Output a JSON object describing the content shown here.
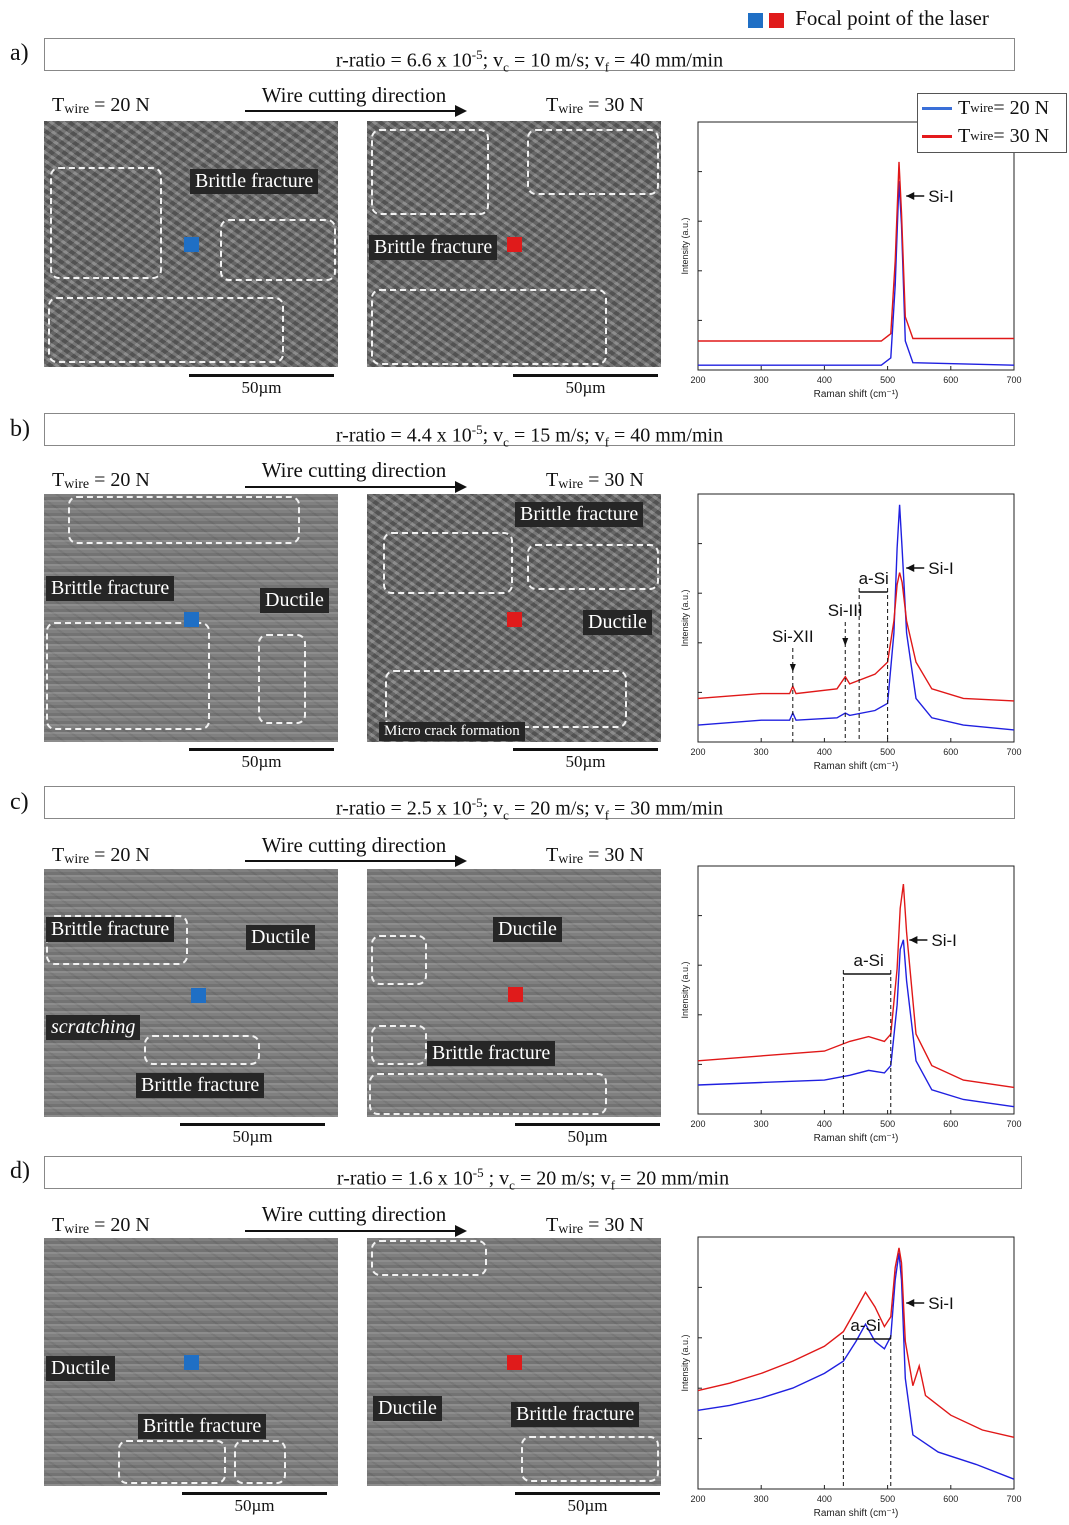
{
  "legend": {
    "label": "Focal point of the laser",
    "colors": {
      "blue": "#1f6fc5",
      "red": "#e01b1b"
    }
  },
  "common": {
    "twire_prefix": "T",
    "twire_sub": "wire",
    "twire_20": " = 20 N",
    "twire_30": " = 30 N",
    "direction": "Wire cutting direction",
    "scale": "50µm"
  },
  "panels": [
    {
      "label": "a)",
      "cond": {
        "r_pre": "r-ratio = 6.6 x 10",
        "r_exp": "-5",
        "vc_pre": "; v",
        "vc_sub": "c",
        "vc_val": " = 10 m/s; v",
        "vf_sub": "f",
        "vf_val": " = 40 mm/min"
      },
      "left_tags": [
        "Brittle fracture"
      ],
      "right_tags": [
        "Brittle fracture"
      ]
    },
    {
      "label": "b)",
      "cond": {
        "r_pre": "r-ratio = 4.4 x 10",
        "r_exp": "-5",
        "vc_pre": "; v",
        "vc_sub": "c",
        "vc_val": " = 15 m/s; v",
        "vf_sub": "f",
        "vf_val": " = 40 mm/min"
      },
      "left_tags": [
        "Brittle fracture",
        "Ductile"
      ],
      "right_tags": [
        "Brittle fracture",
        "Ductile",
        "Micro crack formation"
      ]
    },
    {
      "label": "c)",
      "cond": {
        "r_pre": "r-ratio = 2.5 x 10",
        "r_exp": "-5",
        "vc_pre": "; v",
        "vc_sub": "c",
        "vc_val": " = 20 m/s; v",
        "vf_sub": "f",
        "vf_val": " = 30 mm/min"
      },
      "left_tags": [
        "Brittle fracture",
        "Ductile",
        "scratching",
        "Brittle fracture"
      ],
      "right_tags": [
        "Ductile",
        "Brittle fracture"
      ]
    },
    {
      "label": "d)",
      "cond": {
        "r_pre": "r-ratio = 1.6 x 10",
        "r_exp": "-5",
        "vc_pre": " ; v",
        "vc_sub": "c",
        "vc_val": " = 20 m/s; v",
        "vf_sub": "f",
        "vf_val": " = 20 mm/min"
      },
      "left_tags": [
        "Ductile",
        "Brittle fracture"
      ],
      "right_tags": [
        "Ductile",
        "Brittle fracture"
      ]
    }
  ],
  "chart_data": [
    {
      "type": "line",
      "xlabel": "Raman shift (cm⁻¹)",
      "ylabel": "Intensity (a.u.)",
      "xlim": [
        200,
        700
      ],
      "xticks": [
        200,
        300,
        400,
        500,
        600,
        700
      ],
      "legend_entries": [
        {
          "prefix": "T",
          "sub": "wire",
          "text": " = 20 N",
          "color": "#3a6fd8"
        },
        {
          "prefix": "T",
          "sub": "wire",
          "text": " = 30 N",
          "color": "#e41a1c"
        }
      ],
      "annotations": [
        {
          "text": "Si-I",
          "x": 520
        }
      ],
      "series": [
        {
          "color": "#2020e0",
          "points": [
            [
              200,
              0.02
            ],
            [
              490,
              0.02
            ],
            [
              505,
              0.05
            ],
            [
              512,
              0.35
            ],
            [
              518,
              0.78
            ],
            [
              522,
              0.6
            ],
            [
              528,
              0.12
            ],
            [
              540,
              0.03
            ],
            [
              700,
              0.02
            ]
          ]
        },
        {
          "color": "#e01818",
          "points": [
            [
              200,
              0.12
            ],
            [
              490,
              0.12
            ],
            [
              505,
              0.15
            ],
            [
              512,
              0.45
            ],
            [
              518,
              0.86
            ],
            [
              522,
              0.65
            ],
            [
              528,
              0.22
            ],
            [
              540,
              0.13
            ],
            [
              700,
              0.13
            ]
          ]
        }
      ],
      "ylim": [
        0,
        1
      ]
    },
    {
      "type": "line",
      "xlabel": "Raman shift (cm⁻¹)",
      "ylabel": "Intensity (a.u.)",
      "xlim": [
        200,
        700
      ],
      "xticks": [
        200,
        300,
        400,
        500,
        600,
        700
      ],
      "annotations": [
        {
          "text": "Si-XII",
          "x": 350
        },
        {
          "text": "Si-III",
          "x": 433
        },
        {
          "text": "a-Si",
          "x": 478
        },
        {
          "text": "Si-I",
          "x": 520
        }
      ],
      "series": [
        {
          "color": "#2020e0",
          "points": [
            [
              200,
              0.07
            ],
            [
              300,
              0.09
            ],
            [
              345,
              0.09
            ],
            [
              350,
              0.12
            ],
            [
              355,
              0.09
            ],
            [
              420,
              0.1
            ],
            [
              433,
              0.12
            ],
            [
              440,
              0.11
            ],
            [
              480,
              0.13
            ],
            [
              500,
              0.16
            ],
            [
              510,
              0.45
            ],
            [
              515,
              0.8
            ],
            [
              519,
              0.98
            ],
            [
              523,
              0.8
            ],
            [
              530,
              0.45
            ],
            [
              545,
              0.18
            ],
            [
              570,
              0.1
            ],
            [
              620,
              0.07
            ],
            [
              700,
              0.05
            ]
          ]
        },
        {
          "color": "#e01818",
          "points": [
            [
              200,
              0.18
            ],
            [
              300,
              0.2
            ],
            [
              345,
              0.2
            ],
            [
              350,
              0.23
            ],
            [
              355,
              0.2
            ],
            [
              420,
              0.22
            ],
            [
              433,
              0.27
            ],
            [
              440,
              0.24
            ],
            [
              480,
              0.28
            ],
            [
              500,
              0.33
            ],
            [
              510,
              0.5
            ],
            [
              515,
              0.65
            ],
            [
              519,
              0.7
            ],
            [
              523,
              0.66
            ],
            [
              530,
              0.5
            ],
            [
              545,
              0.33
            ],
            [
              570,
              0.22
            ],
            [
              620,
              0.18
            ],
            [
              700,
              0.17
            ]
          ]
        }
      ],
      "ylim": [
        0,
        1
      ]
    },
    {
      "type": "line",
      "xlabel": "Raman shift (cm⁻¹)",
      "ylabel": "Intensity (a.u.)",
      "xlim": [
        200,
        700
      ],
      "xticks": [
        200,
        300,
        400,
        500,
        600,
        700
      ],
      "annotations": [
        {
          "text": "a-Si",
          "x": 470
        },
        {
          "text": "Si-I",
          "x": 525
        }
      ],
      "series": [
        {
          "color": "#2020e0",
          "points": [
            [
              200,
              0.12
            ],
            [
              300,
              0.13
            ],
            [
              400,
              0.14
            ],
            [
              440,
              0.16
            ],
            [
              470,
              0.18
            ],
            [
              495,
              0.17
            ],
            [
              505,
              0.2
            ],
            [
              515,
              0.45
            ],
            [
              520,
              0.68
            ],
            [
              525,
              0.72
            ],
            [
              530,
              0.55
            ],
            [
              545,
              0.22
            ],
            [
              570,
              0.1
            ],
            [
              620,
              0.06
            ],
            [
              700,
              0.03
            ]
          ]
        },
        {
          "color": "#e01818",
          "points": [
            [
              200,
              0.22
            ],
            [
              300,
              0.24
            ],
            [
              400,
              0.26
            ],
            [
              440,
              0.3
            ],
            [
              470,
              0.32
            ],
            [
              495,
              0.3
            ],
            [
              505,
              0.33
            ],
            [
              515,
              0.6
            ],
            [
              520,
              0.85
            ],
            [
              525,
              0.95
            ],
            [
              530,
              0.75
            ],
            [
              545,
              0.33
            ],
            [
              570,
              0.2
            ],
            [
              620,
              0.14
            ],
            [
              700,
              0.11
            ]
          ]
        }
      ],
      "ylim": [
        0,
        1
      ]
    },
    {
      "type": "line",
      "xlabel": "Raman shift (cm⁻¹)",
      "ylabel": "Intensity (a.u.)",
      "xlim": [
        200,
        700
      ],
      "xticks": [
        200,
        300,
        400,
        500,
        600,
        700
      ],
      "annotations": [
        {
          "text": "a-Si",
          "x": 465
        },
        {
          "text": "Si-I",
          "x": 520
        }
      ],
      "series": [
        {
          "color": "#2020e0",
          "points": [
            [
              200,
              0.32
            ],
            [
              250,
              0.34
            ],
            [
              300,
              0.37
            ],
            [
              350,
              0.41
            ],
            [
              400,
              0.47
            ],
            [
              430,
              0.52
            ],
            [
              450,
              0.6
            ],
            [
              465,
              0.67
            ],
            [
              480,
              0.6
            ],
            [
              495,
              0.57
            ],
            [
              505,
              0.62
            ],
            [
              512,
              0.85
            ],
            [
              518,
              0.96
            ],
            [
              522,
              0.85
            ],
            [
              528,
              0.45
            ],
            [
              540,
              0.22
            ],
            [
              580,
              0.15
            ],
            [
              640,
              0.1
            ],
            [
              700,
              0.04
            ]
          ]
        },
        {
          "color": "#e01818",
          "points": [
            [
              200,
              0.4
            ],
            [
              250,
              0.43
            ],
            [
              300,
              0.47
            ],
            [
              350,
              0.52
            ],
            [
              400,
              0.58
            ],
            [
              430,
              0.64
            ],
            [
              450,
              0.73
            ],
            [
              465,
              0.8
            ],
            [
              480,
              0.74
            ],
            [
              495,
              0.66
            ],
            [
              505,
              0.7
            ],
            [
              512,
              0.9
            ],
            [
              518,
              0.98
            ],
            [
              522,
              0.92
            ],
            [
              528,
              0.6
            ],
            [
              540,
              0.42
            ],
            [
              550,
              0.5
            ],
            [
              560,
              0.38
            ],
            [
              600,
              0.3
            ],
            [
              650,
              0.24
            ],
            [
              700,
              0.21
            ]
          ]
        }
      ],
      "ylim": [
        0,
        1
      ]
    }
  ]
}
